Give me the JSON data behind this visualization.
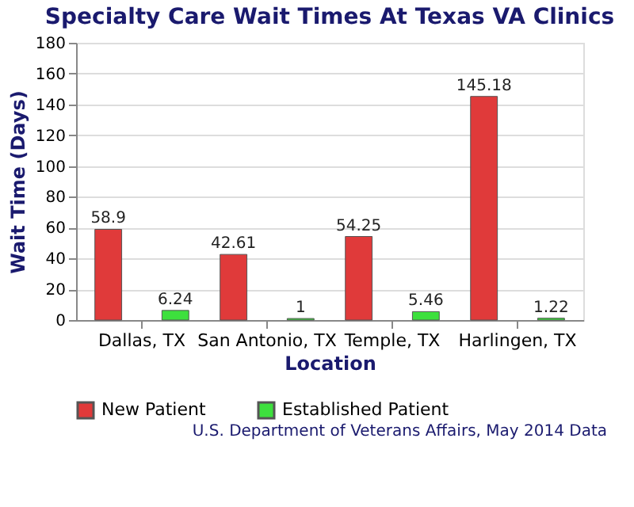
{
  "chart_data": {
    "type": "bar",
    "title": "Specialty Care Wait Times At Texas VA Clinics",
    "xlabel": "Location",
    "ylabel": "Wait Time (Days)",
    "categories": [
      "Dallas, TX",
      "San Antonio, TX",
      "Temple, TX",
      "Harlingen, TX"
    ],
    "series": [
      {
        "name": "New Patient",
        "color": "#e03a3a",
        "values": [
          58.9,
          42.61,
          54.25,
          145.18
        ]
      },
      {
        "name": "Established Patient",
        "color": "#3de03d",
        "values": [
          6.24,
          1,
          5.46,
          1.22
        ]
      }
    ],
    "ylim": [
      0,
      180
    ],
    "yticks": [
      0,
      20,
      40,
      60,
      80,
      100,
      120,
      140,
      160,
      180
    ],
    "grid": "y",
    "legend": "bottom",
    "data_labels": true,
    "annotations": [
      "U.S. Department of Veterans Affairs, May 2014 Data"
    ]
  }
}
